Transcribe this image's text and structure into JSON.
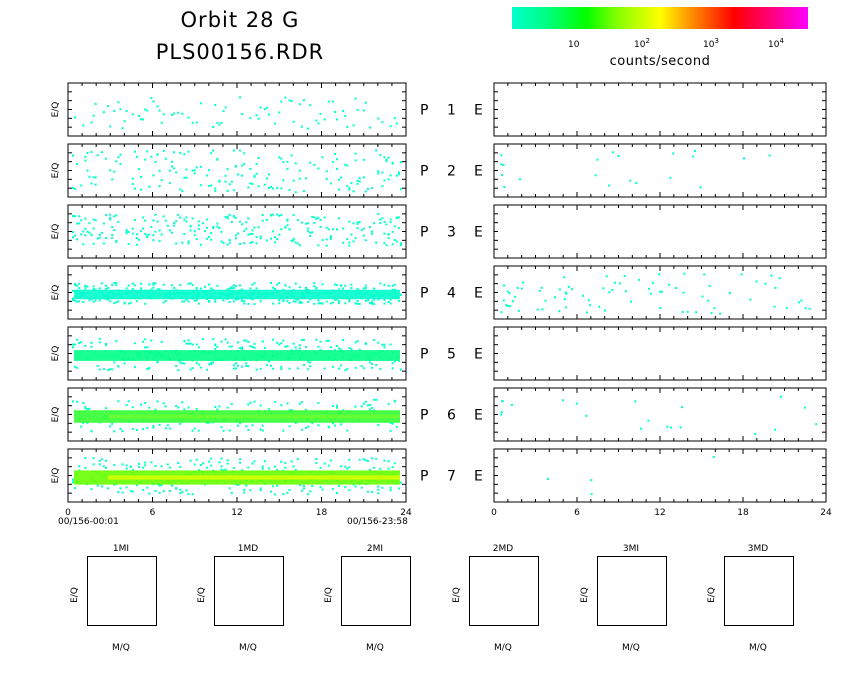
{
  "header": {
    "title_line1": "Orbit 28 G",
    "title_line2": "PLS00156.RDR"
  },
  "colorbar": {
    "unit_label": "counts/second",
    "tick_labels": [
      "10",
      "10",
      "10",
      "10"
    ],
    "tick_exponents": [
      "",
      "2",
      "3",
      "4"
    ],
    "colors": [
      "#00ffcc",
      "#00ff00",
      "#ffff00",
      "#ff8000",
      "#ff0000",
      "#ff00ff"
    ]
  },
  "axis": {
    "y_label": "E/Q",
    "x_ticks": [
      "0",
      "6",
      "12",
      "18",
      "24"
    ],
    "start_stamp": "00/156-00:01",
    "end_stamp": "00/156-23:58"
  },
  "panel_labels": {
    "p_prefix": "P",
    "e_label": "E",
    "rows": [
      "1",
      "2",
      "3",
      "4",
      "5",
      "6",
      "7"
    ]
  },
  "mass_panels": {
    "titles": [
      "1MI",
      "1MD",
      "2MI",
      "2MD",
      "3MI",
      "3MD"
    ],
    "x_label": "M/Q",
    "y_label": "E/Q"
  },
  "chart_data": {
    "type": "heatmap",
    "x": {
      "label": "",
      "range": [
        0,
        24
      ],
      "ticks": [
        0,
        6,
        12,
        18,
        24
      ]
    },
    "color_scale": {
      "label": "counts/second",
      "scale": "log"
    },
    "p_panels": [
      {
        "name": "P 1",
        "density": 0.1,
        "band": [
          0.25,
          0.85
        ],
        "core_color": "#00ffcc",
        "core_level": 0
      },
      {
        "name": "P 2",
        "density": 0.18,
        "band": [
          0.1,
          0.9
        ],
        "core_color": "#00ffcc",
        "core_level": 0
      },
      {
        "name": "P 3",
        "density": 0.3,
        "band": [
          0.15,
          0.75
        ],
        "core_color": "#00ffcc",
        "core_level": 0
      },
      {
        "name": "P 4",
        "density": 0.35,
        "band": [
          0.3,
          0.7
        ],
        "core_color": "#00ffcc",
        "core_level": 0.5
      },
      {
        "name": "P 5",
        "density": 0.25,
        "band": [
          0.2,
          0.8
        ],
        "core_color": "#00ff88",
        "core_level": 0.8
      },
      {
        "name": "P 6",
        "density": 0.2,
        "band": [
          0.2,
          0.8
        ],
        "core_color": "#33ff33",
        "core_level": 1.2
      },
      {
        "name": "P 7",
        "density": 0.25,
        "band": [
          0.15,
          0.85
        ],
        "core_color": "#66ff00",
        "core_level": 1.6
      }
    ],
    "e_panels": [
      {
        "name": "E 1",
        "density": 0.0
      },
      {
        "name": "E 2",
        "density": 0.05
      },
      {
        "name": "E 3",
        "density": 0.0
      },
      {
        "name": "E 4",
        "density": 0.2
      },
      {
        "name": "E 5",
        "density": 0.0
      },
      {
        "name": "E 6",
        "density": 0.05
      },
      {
        "name": "E 7",
        "density": 0.01
      }
    ]
  }
}
